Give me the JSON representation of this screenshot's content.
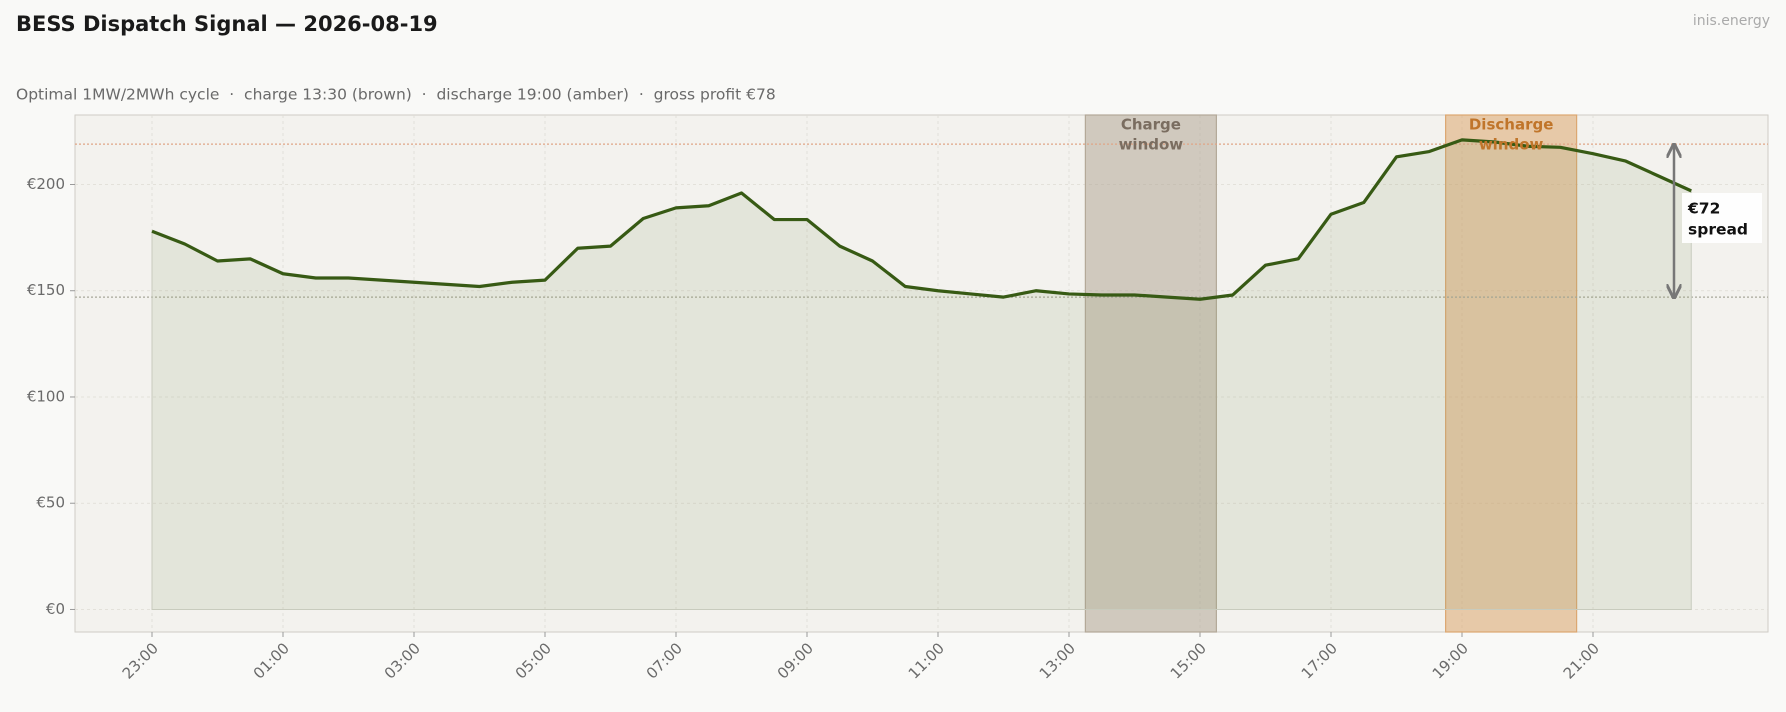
{
  "chart_data": {
    "type": "line",
    "title": "BESS Dispatch Signal — 2026-08-19",
    "subtitle": "Optimal 1MW/2MWh cycle  ·  charge 13:30 (brown)  ·  discharge 19:00 (amber)  ·  gross profit €78",
    "watermark": "inis.energy",
    "categories": [
      "23:00",
      null,
      null,
      null,
      "01:00",
      null,
      null,
      null,
      "03:00",
      null,
      null,
      null,
      "05:00",
      null,
      null,
      null,
      "07:00",
      null,
      null,
      null,
      "09:00",
      null,
      null,
      null,
      "11:00",
      null,
      null,
      null,
      "13:00",
      null,
      null,
      null,
      "15:00",
      null,
      null,
      null,
      "17:00",
      null,
      null,
      null,
      "19:00",
      null,
      null,
      null,
      "21:00",
      null,
      null,
      null
    ],
    "values": [
      178,
      172,
      164,
      165,
      158,
      156,
      156,
      155,
      154,
      153,
      152,
      154,
      155,
      170,
      171,
      184,
      189,
      190,
      196,
      183.5,
      183.5,
      171,
      164,
      152,
      150,
      148.5,
      147,
      150,
      148.5,
      148,
      148,
      147,
      146,
      148,
      162,
      165,
      186,
      191.5,
      213,
      215.5,
      221,
      220,
      218,
      217.5,
      214.5,
      211,
      204,
      197
    ],
    "color": "#375a14",
    "ylim": [
      -10.6,
      232.7
    ],
    "yticks": [
      {
        "value": 0,
        "label": "€0"
      },
      {
        "value": 50,
        "label": "€50"
      },
      {
        "value": 100,
        "label": "€100"
      },
      {
        "value": 150,
        "label": "€150"
      },
      {
        "value": 200,
        "label": "€200"
      }
    ],
    "grid": true,
    "windows": [
      {
        "label": [
          "Charge",
          "window"
        ],
        "start": 28.5,
        "end": 32.5,
        "color": "#b3a898",
        "text_color": "#7a6d60"
      },
      {
        "label": [
          "Discharge",
          "window"
        ],
        "start": 39.5,
        "end": 43.5,
        "color": "#dca770",
        "text_color": "#c0752a"
      }
    ],
    "reference_lines": [
      {
        "value": 219,
        "color": "#e0a585"
      },
      {
        "value": 147,
        "color": "#a8a89a"
      }
    ],
    "spread_annotation": {
      "text": [
        "€72",
        "spread"
      ]
    }
  }
}
